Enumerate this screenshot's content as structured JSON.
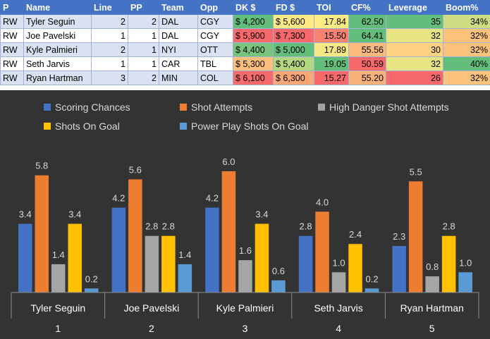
{
  "table": {
    "headers": [
      "P",
      "Name",
      "Line",
      "PP",
      "Team",
      "Opp",
      "DK $",
      "FD $",
      "TOI",
      "CF%",
      "Leverage",
      "Boom%"
    ],
    "rows": [
      {
        "p": "RW",
        "name": "Tyler Seguin",
        "line": "2",
        "pp": "2",
        "team": "DAL",
        "opp": "CGY",
        "dk": "$ 4,200",
        "fd": "$ 5,600",
        "toi": "17.84",
        "cf": "62.50",
        "leverage": "35",
        "boom": "34%",
        "dk_color": "#63be7b",
        "fd_color": "#ffe984",
        "toi_color": "#fdeb84",
        "cf_color": "#63be7b",
        "lev_color": "#63be7b",
        "boom_color": "#cfdd82"
      },
      {
        "p": "RW",
        "name": "Joe Pavelski",
        "line": "1",
        "pp": "1",
        "team": "DAL",
        "opp": "CGY",
        "dk": "$ 5,900",
        "fd": "$ 7,300",
        "toi": "15.50",
        "cf": "64.41",
        "leverage": "32",
        "boom": "32%",
        "dk_color": "#f8696b",
        "fd_color": "#f8696b",
        "toi_color": "#f98370",
        "cf_color": "#63be7b",
        "lev_color": "#e7e483",
        "boom_color": "#fcc27c"
      },
      {
        "p": "RW",
        "name": "Kyle Palmieri",
        "line": "2",
        "pp": "1",
        "team": "NYI",
        "opp": "OTT",
        "dk": "$ 4,400",
        "fd": "$ 5,000",
        "toi": "17.89",
        "cf": "55.56",
        "leverage": "30",
        "boom": "32%",
        "dk_color": "#78c47d",
        "fd_color": "#63be7b",
        "toi_color": "#f6e883",
        "cf_color": "#fbb97a",
        "lev_color": "#fdd17f",
        "boom_color": "#fcc27c"
      },
      {
        "p": "RW",
        "name": "Seth Jarvis",
        "line": "1",
        "pp": "1",
        "team": "CAR",
        "opp": "TBL",
        "dk": "$ 5,300",
        "fd": "$ 5,400",
        "toi": "19.05",
        "cf": "50.59",
        "leverage": "32",
        "boom": "40%",
        "dk_color": "#fcc07c",
        "fd_color": "#b5d680",
        "toi_color": "#63be7b",
        "cf_color": "#f8696b",
        "lev_color": "#e7e483",
        "boom_color": "#63be7b"
      },
      {
        "p": "RW",
        "name": "Ryan Hartman",
        "line": "3",
        "pp": "2",
        "team": "MIN",
        "opp": "COL",
        "dk": "$ 6,100",
        "fd": "$ 6,300",
        "toi": "15.27",
        "cf": "55.20",
        "leverage": "26",
        "boom": "32%",
        "dk_color": "#f8696b",
        "fd_color": "#fba676",
        "toi_color": "#f8696b",
        "cf_color": "#fbb279",
        "lev_color": "#f8696b",
        "boom_color": "#fcc27c"
      }
    ]
  },
  "chart_data": {
    "type": "bar",
    "background": "#333333",
    "categories": [
      "Tyler Seguin",
      "Joe Pavelski",
      "Kyle Palmieri",
      "Seth Jarvis",
      "Ryan Hartman"
    ],
    "group_labels": [
      "1",
      "2",
      "3",
      "4",
      "5"
    ],
    "series": [
      {
        "name": "Scoring Chances",
        "color": "#4472c4",
        "values": [
          3.4,
          4.2,
          4.2,
          2.8,
          2.3
        ]
      },
      {
        "name": "Shot Attempts",
        "color": "#ed7d31",
        "values": [
          5.8,
          5.6,
          6.0,
          4.0,
          5.5
        ]
      },
      {
        "name": "High Danger Shot Attempts",
        "color": "#a5a5a5",
        "values": [
          1.4,
          2.8,
          1.6,
          1.0,
          0.8
        ]
      },
      {
        "name": "Shots On Goal",
        "color": "#ffc000",
        "values": [
          3.4,
          2.8,
          3.4,
          2.4,
          2.8
        ]
      },
      {
        "name": "Power Play Shots On Goal",
        "color": "#5b9bd5",
        "values": [
          0.2,
          1.4,
          0.6,
          0.2,
          1.0
        ]
      }
    ],
    "legend_position": "top",
    "ylim": [
      0,
      7
    ],
    "grid": false,
    "data_labels": true
  }
}
